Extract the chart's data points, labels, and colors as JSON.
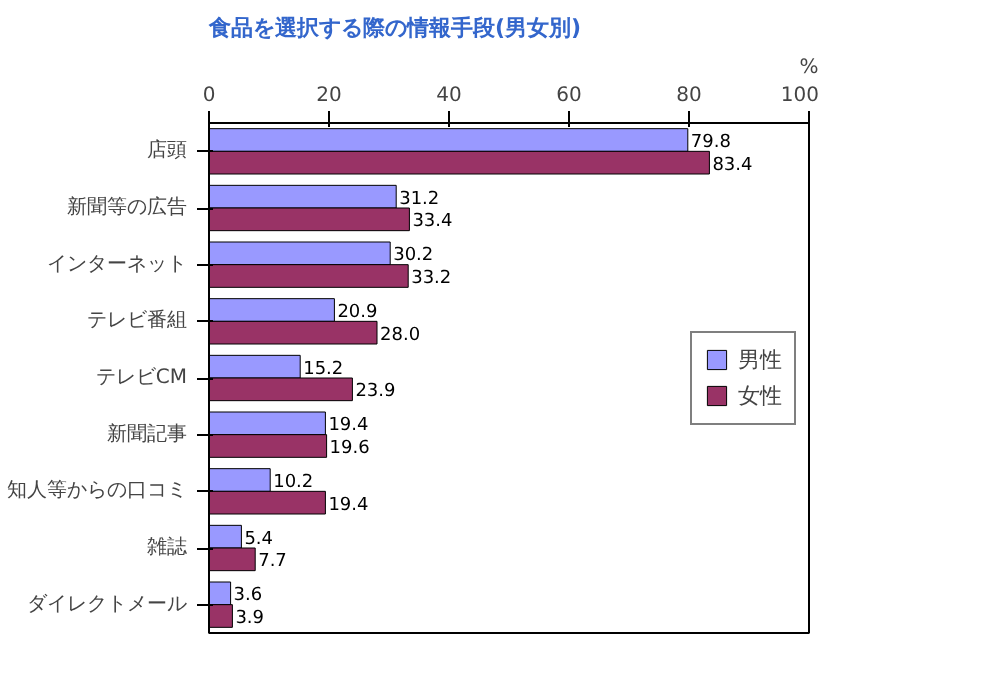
{
  "chart_data": {
    "type": "bar",
    "orientation": "horizontal",
    "title": "食品を選択する際の情報手段(男女別)",
    "xlabel": "%",
    "categories": [
      "店頭",
      "新聞等の広告",
      "インターネット",
      "テレビ番組",
      "テレビCM",
      "新聞記事",
      "知人等からの口コミ",
      "雑誌",
      "ダイレクトメール"
    ],
    "series": [
      {
        "name": "男性",
        "color": "#9999ff",
        "values": [
          79.8,
          31.2,
          30.2,
          20.9,
          15.2,
          19.4,
          10.2,
          5.4,
          3.6
        ],
        "value_labels": [
          "79.8",
          "31.2",
          "30.2",
          "20.9",
          "15.2",
          "19.4",
          "10.2",
          "5.4",
          "3.6"
        ]
      },
      {
        "name": "女性",
        "color": "#993366",
        "values": [
          83.4,
          33.4,
          33.2,
          28.0,
          23.9,
          19.6,
          19.4,
          7.7,
          3.9
        ],
        "value_labels": [
          "83.4",
          "33.4",
          "33.2",
          "28.0",
          "23.9",
          "19.6",
          "19.4",
          "7.7",
          "3.9"
        ]
      }
    ],
    "xlim": [
      0,
      100
    ],
    "xticks": [
      0,
      20,
      40,
      60,
      80,
      100
    ],
    "grid": false,
    "legend": "right"
  }
}
